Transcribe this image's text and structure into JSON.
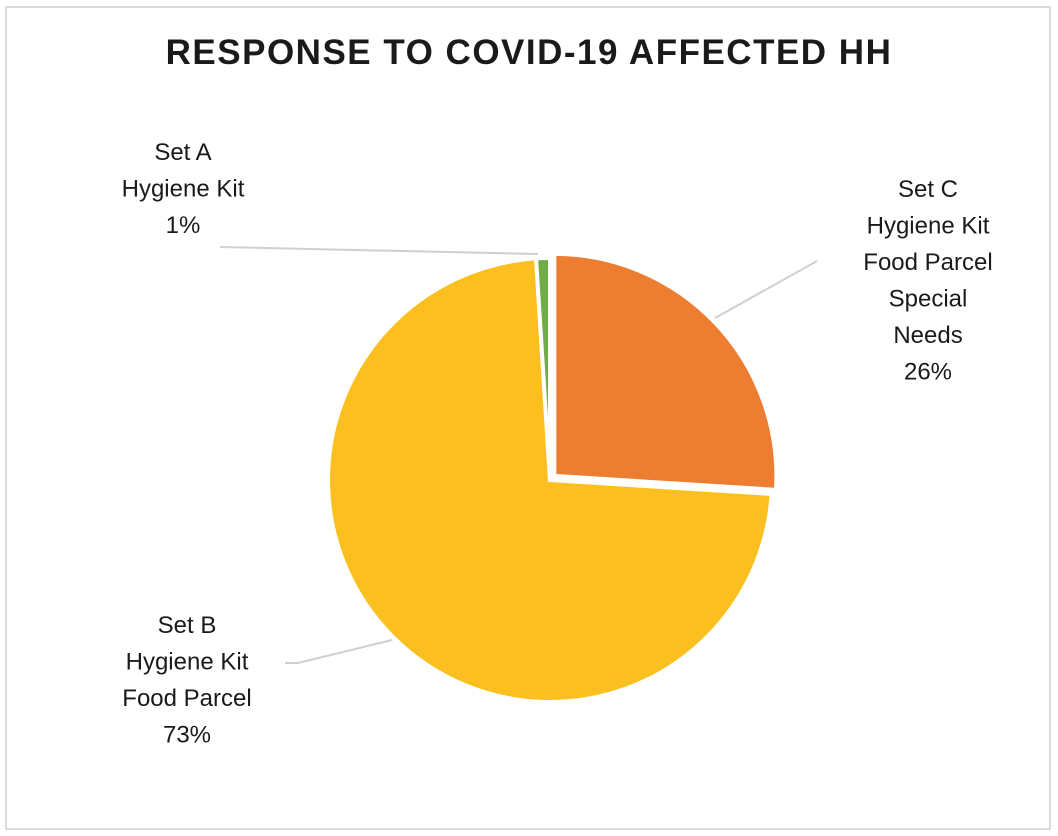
{
  "chart_data": {
    "type": "pie",
    "title": "RESPONSE TO COVID-19 AFFECTED HH",
    "slices": [
      {
        "name": "Set C Hygiene Kit Food Parcel Special Needs",
        "lines": [
          "Set C",
          "Hygiene Kit",
          "Food Parcel",
          "Special",
          "Needs",
          "26%"
        ],
        "value": 26,
        "color": "#ed7d31",
        "exploded": true
      },
      {
        "name": "Set B Hygiene Kit Food Parcel",
        "lines": [
          "Set B",
          "Hygiene Kit",
          "Food Parcel",
          "73%"
        ],
        "value": 73,
        "color": "#fbbf1f",
        "exploded": false
      },
      {
        "name": "Set A Hygiene Kit",
        "lines": [
          "Set A",
          "Hygiene Kit",
          "1%"
        ],
        "value": 1,
        "color": "#70ad47",
        "exploded": false
      }
    ],
    "start_angle_deg": 0,
    "direction": "clockwise",
    "legend": "none",
    "data_labels": "outside with leader lines"
  }
}
